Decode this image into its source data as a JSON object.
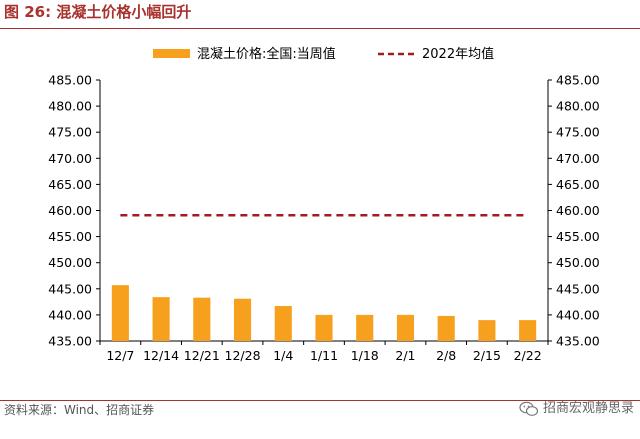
{
  "figure": {
    "label": "图 26:",
    "title": "混凝土价格小幅回升",
    "source": "资料来源：Wind、招商证券",
    "watermark": "招商宏观静思录"
  },
  "colors": {
    "bar": "#f7a01d",
    "avg_line": "#a11d1d",
    "title": "#a8322d",
    "axis": "#000000"
  },
  "chart_data": {
    "type": "bar",
    "categories": [
      "12/7",
      "12/14",
      "12/21",
      "12/28",
      "1/4",
      "1/11",
      "1/18",
      "2/1",
      "2/8",
      "2/15",
      "2/22"
    ],
    "series": [
      {
        "name": "混凝土价格:全国:当周值",
        "kind": "bar",
        "values": [
          445.7,
          443.4,
          443.3,
          443.1,
          441.7,
          440.0,
          440.0,
          440.0,
          439.8,
          439.0,
          439.0
        ]
      },
      {
        "name": "2022年均值",
        "kind": "dashed-line",
        "values": [
          459.1,
          459.1,
          459.1,
          459.1,
          459.1,
          459.1,
          459.1,
          459.1,
          459.1,
          459.1,
          459.1
        ]
      }
    ],
    "ylim": [
      435,
      485
    ],
    "yticks": [
      "435.00",
      "440.00",
      "445.00",
      "450.00",
      "455.00",
      "460.00",
      "465.00",
      "470.00",
      "475.00",
      "480.00",
      "485.00"
    ],
    "y2ticks": [
      "435.00",
      "440.00",
      "445.00",
      "450.00",
      "455.00",
      "460.00",
      "465.00",
      "470.00",
      "475.00",
      "480.00",
      "485.00"
    ],
    "grid": false,
    "legend_position": "top"
  }
}
